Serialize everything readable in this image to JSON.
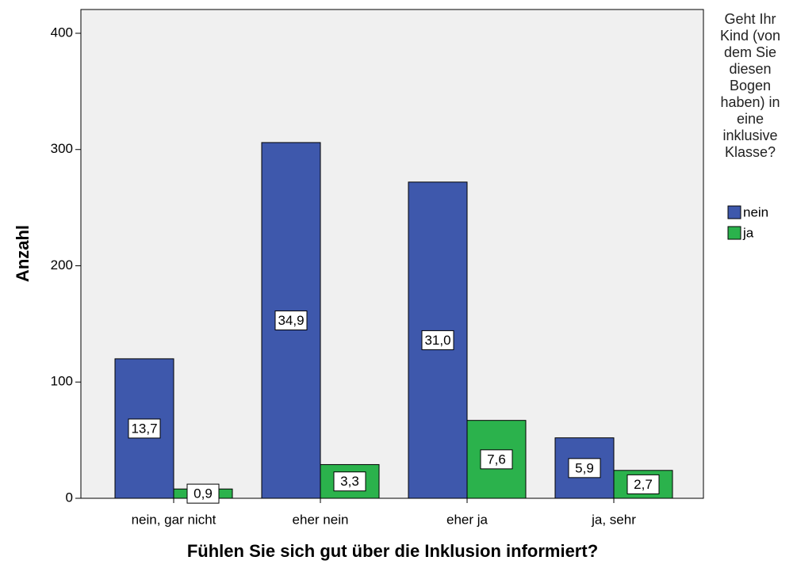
{
  "chart_data": {
    "type": "bar",
    "x_label": "Fühlen Sie sich gut über die Inklusion informiert?",
    "y_label": "Anzahl",
    "legend_title": "Geht Ihr Kind (von dem Sie diesen Bogen haben) in eine inklusive Klasse?",
    "categories": [
      "nein, gar nicht",
      "eher nein",
      "eher ja",
      "ja, sehr"
    ],
    "series": [
      {
        "name": "nein",
        "color": "#3e58ac",
        "values": [
          120,
          306,
          272,
          52
        ],
        "labels": [
          "13,7",
          "34,9",
          "31,0",
          "5,9"
        ]
      },
      {
        "name": "ja",
        "color": "#2bb24c",
        "values": [
          8,
          29,
          67,
          24
        ],
        "labels": [
          "0,9",
          "3,3",
          "7,6",
          "2,7"
        ]
      }
    ],
    "ylim": [
      0,
      400
    ],
    "yticks": [
      0,
      100,
      200,
      300,
      400
    ]
  }
}
